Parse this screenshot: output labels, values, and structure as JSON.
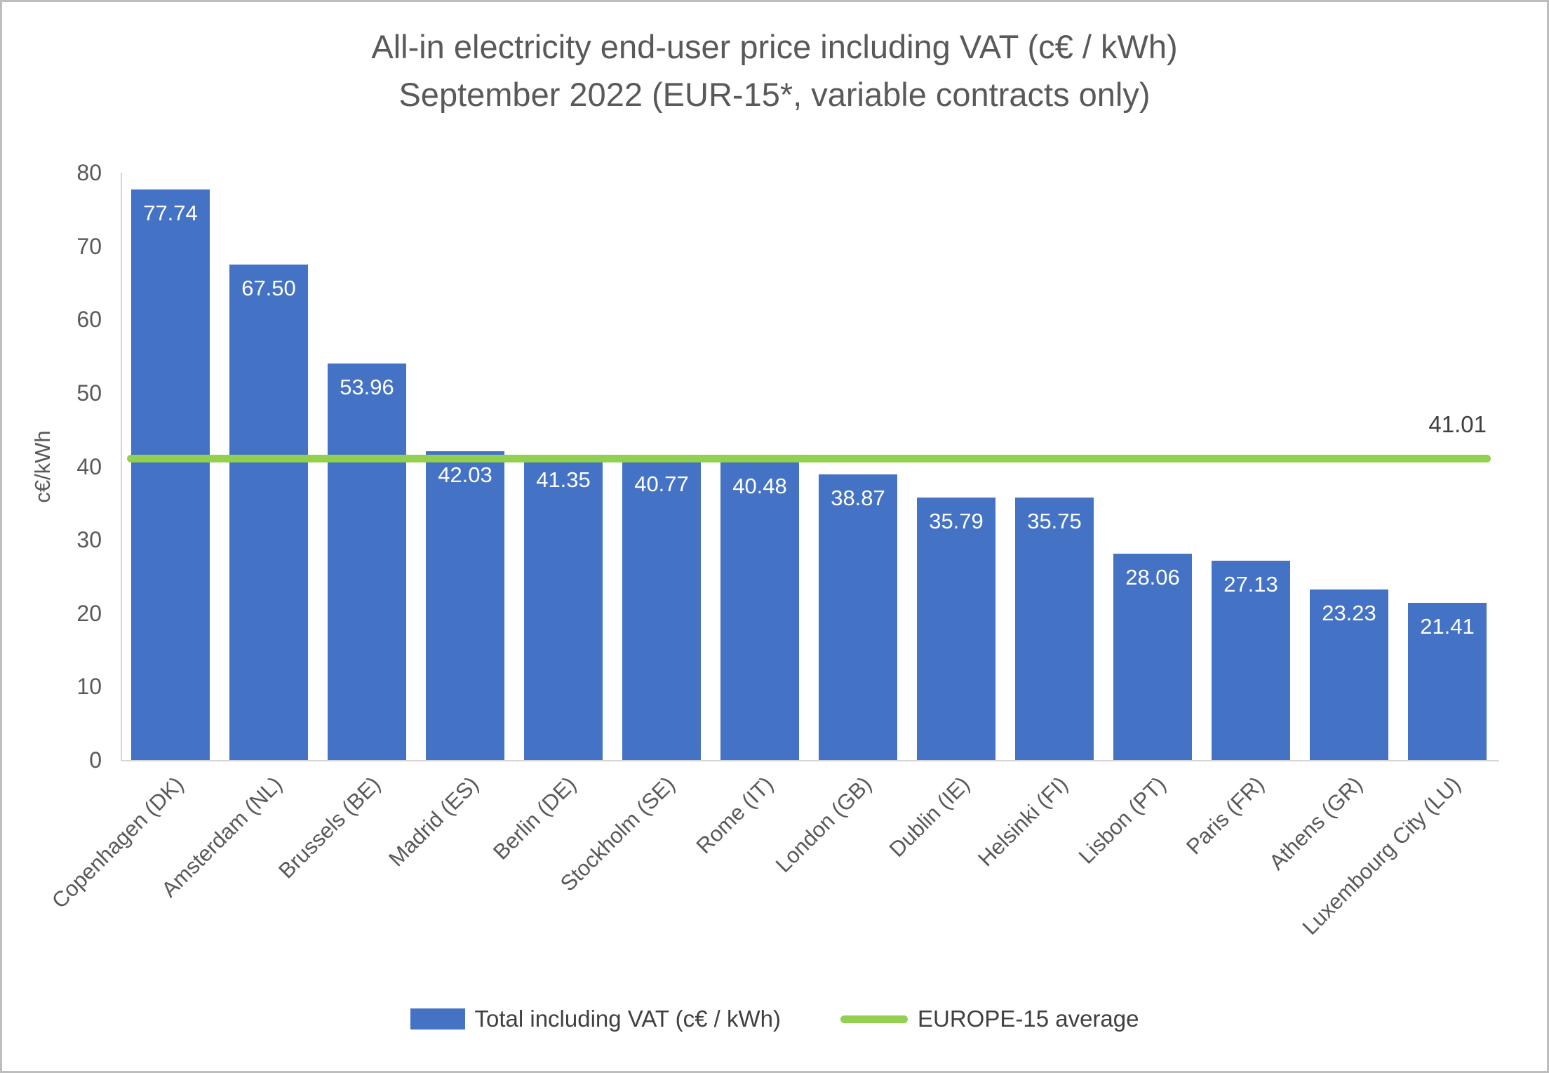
{
  "chart_data": {
    "type": "bar",
    "title_line1": "All-in electricity end-user price including VAT (c€ / kWh)",
    "title_line2": "September 2022 (EUR-15*, variable contracts only)",
    "ylabel": "c€/kWh",
    "ylim": [
      0,
      80
    ],
    "ytick_step": 10,
    "grid": false,
    "legend_position": "bottom",
    "categories": [
      "Copenhagen (DK)",
      "Amsterdam (NL)",
      "Brussels (BE)",
      "Madrid (ES)",
      "Berlin (DE)",
      "Stockholm (SE)",
      "Rome (IT)",
      "London (GB)",
      "Dublin (IE)",
      "Helsinki (FI)",
      "Lisbon (PT)",
      "Paris (FR)",
      "Athens (GR)",
      "Luxembourg City (LU)"
    ],
    "values": [
      77.74,
      67.5,
      53.96,
      42.03,
      41.35,
      40.77,
      40.48,
      38.87,
      35.79,
      35.75,
      28.06,
      27.13,
      23.23,
      21.41
    ],
    "average": 41.01,
    "average_label": "41.01",
    "legend": {
      "series_label": "Total including VAT (c€ / kWh)",
      "average_label": "EUROPE-15 average"
    },
    "colors": {
      "bar": "#4472C4",
      "average_line": "#92D050",
      "title_text": "#595959",
      "axis_text": "#595959",
      "annotation_text": "#404040",
      "value_label_text": "#FFFFFF",
      "axis_line": "#d6d6d6"
    }
  }
}
